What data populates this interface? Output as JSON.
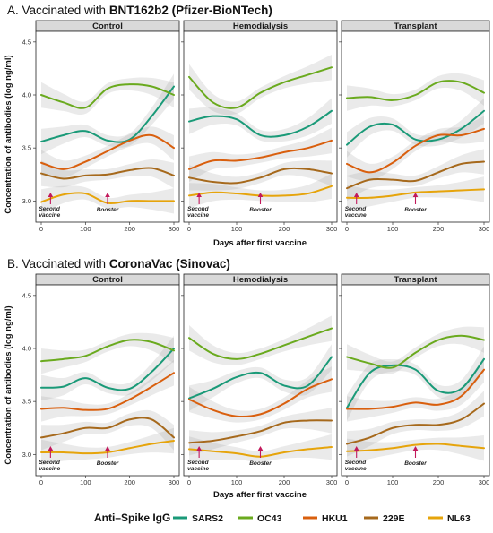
{
  "figure": {
    "panel_a_prefix": "A. Vaccinated with ",
    "panel_a_vaccine": "BNT162b2 (Pfizer-BioNTech)",
    "panel_b_prefix": "B. Vaccinated with ",
    "panel_b_vaccine": "CoronaVac (Sinovac)",
    "y_axis_label": "Concentration of antibodies (log ng/ml)",
    "x_axis_label": "Days after first vaccine",
    "legend_title": "Anti–Spike IgG",
    "annotation_second_line1": "Second",
    "annotation_second_line2": "vaccine",
    "annotation_booster": "Booster",
    "annotation_color": "#c2185b"
  },
  "series_meta": [
    {
      "name": "SARS2",
      "color": "#1a9a78"
    },
    {
      "name": "OC43",
      "color": "#6aaa1e"
    },
    {
      "name": "HKU1",
      "color": "#d95f0e"
    },
    {
      "name": "229E",
      "color": "#a6691c"
    },
    {
      "name": "NL63",
      "color": "#e6a40b"
    }
  ],
  "chart_data": [
    {
      "type": "line",
      "panel": "A",
      "facet": "Control",
      "x": [
        0,
        50,
        100,
        150,
        200,
        250,
        300
      ],
      "xlim": [
        0,
        300
      ],
      "ylim": [
        2.8,
        4.6
      ],
      "x_ticks": [
        0,
        100,
        200,
        300
      ],
      "y_ticks": [
        3.0,
        3.5,
        4.0,
        4.5
      ],
      "series": [
        {
          "name": "SARS2",
          "values": [
            3.56,
            3.62,
            3.66,
            3.57,
            3.58,
            3.8,
            4.08
          ]
        },
        {
          "name": "OC43",
          "values": [
            4.0,
            3.93,
            3.88,
            4.06,
            4.1,
            4.08,
            4.0
          ]
        },
        {
          "name": "HKU1",
          "values": [
            3.36,
            3.3,
            3.37,
            3.47,
            3.57,
            3.62,
            3.5
          ]
        },
        {
          "name": "229E",
          "values": [
            3.26,
            3.21,
            3.24,
            3.25,
            3.29,
            3.31,
            3.24
          ]
        },
        {
          "name": "NL63",
          "values": [
            2.99,
            3.06,
            3.07,
            2.98,
            3.0,
            3.0,
            3.0
          ]
        }
      ]
    },
    {
      "type": "line",
      "panel": "A",
      "facet": "Hemodialysis",
      "x": [
        0,
        50,
        100,
        150,
        200,
        250,
        300
      ],
      "xlim": [
        0,
        300
      ],
      "ylim": [
        2.8,
        4.6
      ],
      "x_ticks": [
        0,
        100,
        200,
        300
      ],
      "y_ticks": [
        3.0,
        3.5,
        4.0,
        4.5
      ],
      "series": [
        {
          "name": "SARS2",
          "values": [
            3.75,
            3.8,
            3.77,
            3.62,
            3.62,
            3.7,
            3.85
          ]
        },
        {
          "name": "OC43",
          "values": [
            4.17,
            3.93,
            3.88,
            4.02,
            4.12,
            4.19,
            4.26
          ]
        },
        {
          "name": "HKU1",
          "values": [
            3.3,
            3.38,
            3.38,
            3.41,
            3.46,
            3.5,
            3.57
          ]
        },
        {
          "name": "229E",
          "values": [
            3.22,
            3.18,
            3.17,
            3.22,
            3.3,
            3.3,
            3.26
          ]
        },
        {
          "name": "NL63",
          "values": [
            3.05,
            3.08,
            3.07,
            3.05,
            3.05,
            3.07,
            3.14
          ]
        }
      ]
    },
    {
      "type": "line",
      "panel": "A",
      "facet": "Transplant",
      "x": [
        0,
        50,
        100,
        150,
        200,
        250,
        300
      ],
      "xlim": [
        0,
        300
      ],
      "ylim": [
        2.8,
        4.6
      ],
      "x_ticks": [
        0,
        100,
        200,
        300
      ],
      "y_ticks": [
        3.0,
        3.5,
        4.0,
        4.5
      ],
      "series": [
        {
          "name": "SARS2",
          "values": [
            3.53,
            3.7,
            3.72,
            3.58,
            3.58,
            3.68,
            3.85
          ]
        },
        {
          "name": "OC43",
          "values": [
            3.97,
            3.98,
            3.95,
            4.0,
            4.12,
            4.12,
            4.02
          ]
        },
        {
          "name": "HKU1",
          "values": [
            3.35,
            3.27,
            3.36,
            3.52,
            3.62,
            3.62,
            3.68
          ]
        },
        {
          "name": "229E",
          "values": [
            3.12,
            3.2,
            3.2,
            3.19,
            3.27,
            3.35,
            3.37
          ]
        },
        {
          "name": "NL63",
          "values": [
            3.03,
            3.03,
            3.05,
            3.08,
            3.09,
            3.1,
            3.11
          ]
        }
      ]
    },
    {
      "type": "line",
      "panel": "B",
      "facet": "Control",
      "x": [
        0,
        50,
        100,
        150,
        200,
        250,
        300
      ],
      "xlim": [
        0,
        300
      ],
      "ylim": [
        2.8,
        4.6
      ],
      "x_ticks": [
        0,
        100,
        200,
        300
      ],
      "y_ticks": [
        3.0,
        3.5,
        4.0,
        4.5
      ],
      "series": [
        {
          "name": "SARS2",
          "values": [
            3.63,
            3.64,
            3.72,
            3.63,
            3.62,
            3.78,
            4.0
          ]
        },
        {
          "name": "OC43",
          "values": [
            3.88,
            3.9,
            3.93,
            4.02,
            4.08,
            4.06,
            3.98
          ]
        },
        {
          "name": "HKU1",
          "values": [
            3.43,
            3.44,
            3.42,
            3.43,
            3.52,
            3.64,
            3.77
          ]
        },
        {
          "name": "229E",
          "values": [
            3.16,
            3.2,
            3.25,
            3.25,
            3.33,
            3.33,
            3.16
          ]
        },
        {
          "name": "NL63",
          "values": [
            3.02,
            3.02,
            3.01,
            3.02,
            3.06,
            3.1,
            3.13
          ]
        }
      ]
    },
    {
      "type": "line",
      "panel": "B",
      "facet": "Hemodialysis",
      "x": [
        0,
        50,
        100,
        150,
        200,
        250,
        300
      ],
      "xlim": [
        0,
        300
      ],
      "ylim": [
        2.8,
        4.6
      ],
      "x_ticks": [
        0,
        100,
        200,
        300
      ],
      "y_ticks": [
        3.0,
        3.5,
        4.0,
        4.5
      ],
      "series": [
        {
          "name": "SARS2",
          "values": [
            3.53,
            3.62,
            3.73,
            3.77,
            3.65,
            3.65,
            3.92
          ]
        },
        {
          "name": "OC43",
          "values": [
            4.1,
            3.95,
            3.9,
            3.95,
            4.03,
            4.11,
            4.19
          ]
        },
        {
          "name": "HKU1",
          "values": [
            3.52,
            3.42,
            3.36,
            3.38,
            3.48,
            3.62,
            3.71
          ]
        },
        {
          "name": "229E",
          "values": [
            3.11,
            3.13,
            3.17,
            3.22,
            3.3,
            3.32,
            3.32
          ]
        },
        {
          "name": "NL63",
          "values": [
            3.05,
            3.03,
            3.01,
            2.98,
            3.02,
            3.05,
            3.07
          ]
        }
      ]
    },
    {
      "type": "line",
      "panel": "B",
      "facet": "Transplant",
      "x": [
        0,
        50,
        100,
        150,
        200,
        250,
        300
      ],
      "xlim": [
        0,
        300
      ],
      "ylim": [
        2.8,
        4.6
      ],
      "x_ticks": [
        0,
        100,
        200,
        300
      ],
      "y_ticks": [
        3.0,
        3.5,
        4.0,
        4.5
      ],
      "series": [
        {
          "name": "SARS2",
          "values": [
            3.44,
            3.77,
            3.84,
            3.8,
            3.6,
            3.62,
            3.9
          ]
        },
        {
          "name": "OC43",
          "values": [
            3.92,
            3.86,
            3.82,
            3.96,
            4.08,
            4.12,
            4.08
          ]
        },
        {
          "name": "HKU1",
          "values": [
            3.43,
            3.43,
            3.45,
            3.49,
            3.47,
            3.55,
            3.8
          ]
        },
        {
          "name": "229E",
          "values": [
            3.1,
            3.16,
            3.25,
            3.28,
            3.28,
            3.33,
            3.48
          ]
        },
        {
          "name": "NL63",
          "values": [
            3.03,
            3.04,
            3.06,
            3.09,
            3.1,
            3.08,
            3.06
          ]
        }
      ]
    }
  ]
}
